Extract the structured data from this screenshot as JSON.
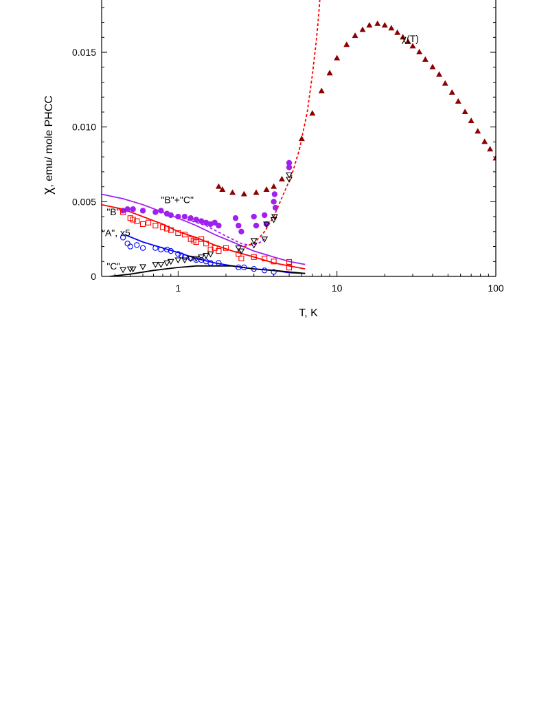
{
  "chart_data": {
    "type": "scatter",
    "xscale": "log",
    "xlabel": "T, K",
    "ylabel_symbol": "χ",
    "ylabel_rest": ", emu/ mole PHCC",
    "xlim": [
      0.33,
      100
    ],
    "ylim": [
      0,
      0.0185
    ],
    "xticks": [
      {
        "v": 1,
        "label": "1"
      },
      {
        "v": 10,
        "label": "10"
      },
      {
        "v": 100,
        "label": "100"
      }
    ],
    "yticks": [
      {
        "v": 0,
        "label": "0"
      },
      {
        "v": 0.005,
        "label": "0.005"
      },
      {
        "v": 0.01,
        "label": "0.010"
      },
      {
        "v": 0.015,
        "label": "0.015"
      }
    ],
    "annotations": [
      {
        "text": "\"B\"+\"C\"",
        "x": 0.78,
        "y": 0.0049
      },
      {
        "text": "\"B\"",
        "x": 0.355,
        "y": 0.0041
      },
      {
        "text": "\"A\", x5",
        "x": 0.33,
        "y": 0.0027
      },
      {
        "text": "\"C\"",
        "x": 0.355,
        "y": 0.00045
      },
      {
        "text": "χ(T)",
        "x": 25.5,
        "y": 0.0157
      }
    ],
    "series": [
      {
        "id": "chiT",
        "marker": "triangle-filled",
        "color": "#8b0000",
        "points": [
          [
            1.8,
            0.006
          ],
          [
            1.9,
            0.0058
          ],
          [
            2.2,
            0.0056
          ],
          [
            2.6,
            0.0055
          ],
          [
            3.1,
            0.0056
          ],
          [
            3.6,
            0.0058
          ],
          [
            4.0,
            0.006
          ],
          [
            4.5,
            0.0065
          ],
          [
            5.0,
            0.0074
          ],
          [
            6.0,
            0.0092
          ],
          [
            7.0,
            0.0109
          ],
          [
            8.0,
            0.0124
          ],
          [
            9.0,
            0.0136
          ],
          [
            10.0,
            0.0146
          ],
          [
            11.5,
            0.0155
          ],
          [
            13,
            0.0161
          ],
          [
            14.5,
            0.0165
          ],
          [
            16,
            0.0168
          ],
          [
            18,
            0.0169
          ],
          [
            20,
            0.0168
          ],
          [
            22,
            0.0166
          ],
          [
            24,
            0.0163
          ],
          [
            26,
            0.016
          ],
          [
            28,
            0.0157
          ],
          [
            30,
            0.0154
          ],
          [
            33,
            0.015
          ],
          [
            36,
            0.0145
          ],
          [
            40,
            0.014
          ],
          [
            44,
            0.0135
          ],
          [
            48,
            0.0129
          ],
          [
            53,
            0.0123
          ],
          [
            58,
            0.0117
          ],
          [
            64,
            0.011
          ],
          [
            70,
            0.0104
          ],
          [
            77,
            0.0097
          ],
          [
            85,
            0.009
          ],
          [
            92,
            0.0085
          ],
          [
            100,
            0.0079
          ]
        ]
      },
      {
        "id": "BC",
        "marker": "circle-filled",
        "color": "#a020f0",
        "points": [
          [
            0.45,
            0.0044
          ],
          [
            0.48,
            0.0045
          ],
          [
            0.52,
            0.0045
          ],
          [
            0.6,
            0.0044
          ],
          [
            0.72,
            0.0043
          ],
          [
            0.78,
            0.0044
          ],
          [
            0.85,
            0.0042
          ],
          [
            0.9,
            0.0041
          ],
          [
            1.0,
            0.004
          ],
          [
            1.1,
            0.004
          ],
          [
            1.2,
            0.0039
          ],
          [
            1.3,
            0.0038
          ],
          [
            1.4,
            0.0037
          ],
          [
            1.5,
            0.0036
          ],
          [
            1.6,
            0.0035
          ],
          [
            1.7,
            0.0036
          ],
          [
            1.8,
            0.0034
          ],
          [
            2.3,
            0.0039
          ],
          [
            2.4,
            0.0034
          ],
          [
            2.5,
            0.003
          ],
          [
            3.0,
            0.004
          ],
          [
            3.1,
            0.0034
          ],
          [
            3.5,
            0.0041
          ],
          [
            3.6,
            0.0035
          ],
          [
            4.0,
            0.005
          ],
          [
            4.05,
            0.0055
          ],
          [
            4.1,
            0.0046
          ],
          [
            5.0,
            0.0076
          ],
          [
            5.0,
            0.0073
          ]
        ]
      },
      {
        "id": "B",
        "marker": "square-open",
        "color": "#ff0000",
        "points": [
          [
            0.45,
            0.0043
          ],
          [
            0.5,
            0.0039
          ],
          [
            0.52,
            0.0038
          ],
          [
            0.55,
            0.0037
          ],
          [
            0.6,
            0.0035
          ],
          [
            0.65,
            0.0036
          ],
          [
            0.72,
            0.0034
          ],
          [
            0.8,
            0.0033
          ],
          [
            0.85,
            0.0032
          ],
          [
            0.9,
            0.0031
          ],
          [
            1.0,
            0.0029
          ],
          [
            1.1,
            0.0028
          ],
          [
            1.2,
            0.0025
          ],
          [
            1.25,
            0.0024
          ],
          [
            1.3,
            0.0023
          ],
          [
            1.4,
            0.0025
          ],
          [
            1.5,
            0.0022
          ],
          [
            1.6,
            0.0018
          ],
          [
            1.7,
            0.0019
          ],
          [
            1.8,
            0.0017
          ],
          [
            2.0,
            0.0019
          ],
          [
            2.4,
            0.0015
          ],
          [
            2.5,
            0.0012
          ],
          [
            3.0,
            0.0013
          ],
          [
            3.5,
            0.0012
          ],
          [
            4.0,
            0.001
          ],
          [
            5.0,
            0.00097
          ],
          [
            5.0,
            0.00059
          ]
        ]
      },
      {
        "id": "A",
        "marker": "circle-open",
        "color": "#0000ff",
        "points": [
          [
            0.45,
            0.0026
          ],
          [
            0.48,
            0.0022
          ],
          [
            0.5,
            0.002
          ],
          [
            0.55,
            0.0021
          ],
          [
            0.6,
            0.0019
          ],
          [
            0.72,
            0.0019
          ],
          [
            0.78,
            0.0018
          ],
          [
            0.85,
            0.0018
          ],
          [
            0.9,
            0.0017
          ],
          [
            1.0,
            0.0015
          ],
          [
            1.05,
            0.0014
          ],
          [
            1.1,
            0.0013
          ],
          [
            1.2,
            0.0012
          ],
          [
            1.3,
            0.0011
          ],
          [
            1.4,
            0.0011
          ],
          [
            1.5,
            0.001
          ],
          [
            1.6,
            0.0009
          ],
          [
            1.8,
            0.0009
          ],
          [
            2.4,
            0.0006
          ],
          [
            2.6,
            0.0006
          ],
          [
            3.0,
            0.0005
          ],
          [
            3.5,
            0.0004
          ],
          [
            4.0,
            0.0003
          ]
        ]
      },
      {
        "id": "C",
        "marker": "triangle-down-open",
        "color": "#000000",
        "points": [
          [
            0.45,
            0.00045
          ],
          [
            0.5,
            0.0005
          ],
          [
            0.52,
            0.0005
          ],
          [
            0.6,
            0.00065
          ],
          [
            0.72,
            0.0008
          ],
          [
            0.78,
            0.0008
          ],
          [
            0.85,
            0.0009
          ],
          [
            0.9,
            0.001
          ],
          [
            1.0,
            0.0011
          ],
          [
            1.1,
            0.0011
          ],
          [
            1.2,
            0.0012
          ],
          [
            1.3,
            0.0012
          ],
          [
            1.4,
            0.0013
          ],
          [
            1.5,
            0.0014
          ],
          [
            1.6,
            0.0015
          ],
          [
            2.4,
            0.0019
          ],
          [
            2.5,
            0.0017
          ],
          [
            3.0,
            0.0021
          ],
          [
            3.0,
            0.0024
          ],
          [
            3.5,
            0.0025
          ],
          [
            3.6,
            0.0035
          ],
          [
            4.0,
            0.0038
          ],
          [
            4.05,
            0.004
          ],
          [
            5.0,
            0.0065
          ],
          [
            5.0,
            0.0068
          ]
        ]
      }
    ],
    "curves": [
      {
        "id": "BC-fit",
        "style": "solid",
        "color": "#a020f0",
        "points": [
          [
            0.33,
            0.0055
          ],
          [
            0.45,
            0.0052
          ],
          [
            0.6,
            0.0048
          ],
          [
            0.8,
            0.0043
          ],
          [
            1.0,
            0.0039
          ],
          [
            1.3,
            0.0034
          ],
          [
            1.7,
            0.0028
          ],
          [
            2.2,
            0.0023
          ],
          [
            3.0,
            0.0017
          ],
          [
            4.0,
            0.0013
          ],
          [
            5.0,
            0.001
          ],
          [
            6.3,
            0.0008
          ]
        ]
      },
      {
        "id": "B-fit",
        "style": "solid",
        "color": "#ff0000",
        "points": [
          [
            0.33,
            0.0048
          ],
          [
            0.45,
            0.0045
          ],
          [
            0.6,
            0.004
          ],
          [
            0.8,
            0.0035
          ],
          [
            1.0,
            0.003
          ],
          [
            1.3,
            0.0026
          ],
          [
            1.7,
            0.0021
          ],
          [
            2.2,
            0.0017
          ],
          [
            3.0,
            0.0013
          ],
          [
            4.0,
            0.0009
          ],
          [
            5.0,
            0.0007
          ],
          [
            6.3,
            0.0005
          ]
        ]
      },
      {
        "id": "A-fit",
        "style": "solid",
        "color": "#0000ff",
        "points": [
          [
            0.46,
            0.0028
          ],
          [
            0.6,
            0.0023
          ],
          [
            0.8,
            0.0019
          ],
          [
            1.0,
            0.0016
          ],
          [
            1.3,
            0.0012
          ],
          [
            1.7,
            0.0009
          ],
          [
            2.2,
            0.0007
          ],
          [
            3.0,
            0.0005
          ],
          [
            4.0,
            0.0004
          ],
          [
            5.0,
            0.00025
          ],
          [
            6.3,
            0.0002
          ]
        ]
      },
      {
        "id": "C-fit",
        "style": "solid",
        "color": "#000000",
        "points": [
          [
            0.37,
            0.0
          ],
          [
            0.5,
            0.00015
          ],
          [
            0.7,
            0.0004
          ],
          [
            1.0,
            0.0006
          ],
          [
            1.3,
            0.0007
          ],
          [
            1.7,
            0.0007
          ],
          [
            2.2,
            0.0007
          ],
          [
            3.0,
            0.0005
          ],
          [
            4.0,
            0.0004
          ],
          [
            5.0,
            0.0003
          ],
          [
            6.3,
            0.0002
          ]
        ]
      },
      {
        "id": "BC-dashed",
        "style": "dashed",
        "color": "#a020f0",
        "points": [
          [
            1.0,
            0.004
          ],
          [
            1.5,
            0.0034
          ],
          [
            2.0,
            0.0027
          ],
          [
            2.5,
            0.0022
          ],
          [
            2.8,
            0.0021
          ],
          [
            3.2,
            0.0022
          ],
          [
            3.6,
            0.0026
          ]
        ]
      },
      {
        "id": "red-dashed",
        "style": "dashed",
        "color": "#ff0000",
        "points": [
          [
            2.6,
            0.002
          ],
          [
            3.0,
            0.0022
          ],
          [
            3.5,
            0.003
          ],
          [
            4.0,
            0.004
          ],
          [
            4.6,
            0.0055
          ],
          [
            5.2,
            0.0068
          ],
          [
            5.8,
            0.0085
          ],
          [
            6.5,
            0.011
          ],
          [
            7.0,
            0.0135
          ],
          [
            7.4,
            0.0157
          ],
          [
            7.6,
            0.017
          ],
          [
            7.8,
            0.0185
          ]
        ]
      }
    ]
  }
}
